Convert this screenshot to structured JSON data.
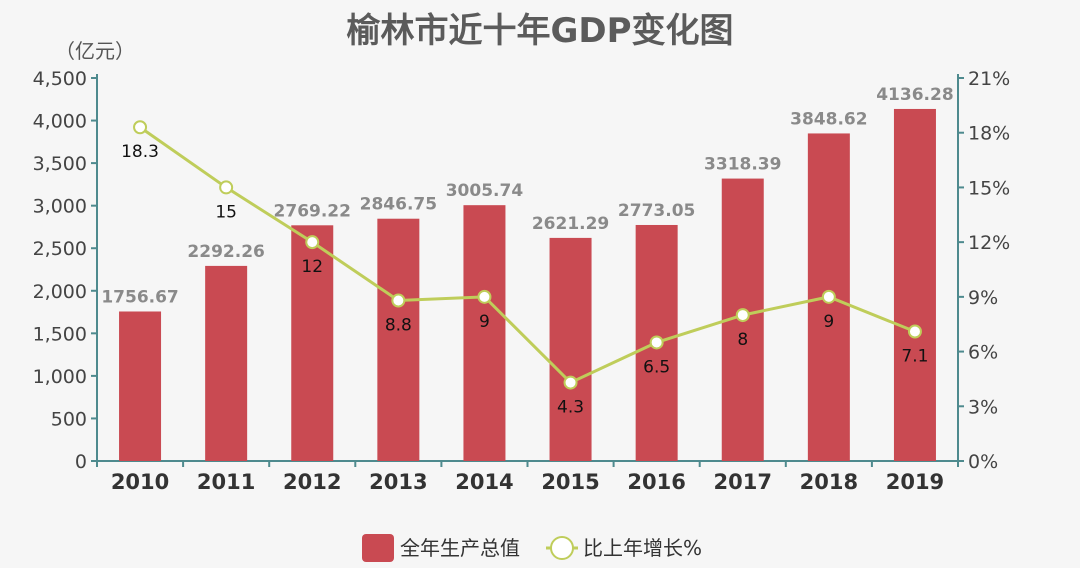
{
  "chart_data": {
    "type": "bar",
    "title": "榆林市近十年GDP变化图",
    "ylabel": "（亿元）",
    "categories": [
      "2010",
      "2011",
      "2012",
      "2013",
      "2014",
      "2015",
      "2016",
      "2017",
      "2018",
      "2019"
    ],
    "series": [
      {
        "name": "全年生产总值",
        "type": "bar",
        "axis": "left",
        "color": "#c94a52",
        "values": [
          1756.67,
          2292.26,
          2769.22,
          2846.75,
          3005.74,
          2621.29,
          2773.05,
          3318.39,
          3848.62,
          4136.28
        ]
      },
      {
        "name": "比上年增长%",
        "type": "line",
        "axis": "right",
        "color": "#bfcd5a",
        "values": [
          18.3,
          15,
          12,
          8.8,
          9,
          4.3,
          6.5,
          8,
          9,
          7.1
        ]
      }
    ],
    "y_left": {
      "min": 0,
      "max": 4500,
      "ticks": [
        "0",
        "500",
        "1,000",
        "1,500",
        "2,000",
        "2,500",
        "3,000",
        "3,500",
        "4,000",
        "4,500"
      ]
    },
    "y_right": {
      "min": 0,
      "max": 21,
      "ticks": [
        "0%",
        "3%",
        "6%",
        "9%",
        "12%",
        "15%",
        "18%",
        "21%"
      ]
    },
    "grid": false,
    "legend_position": "bottom-center",
    "axis_color": "#4e8a8e"
  }
}
